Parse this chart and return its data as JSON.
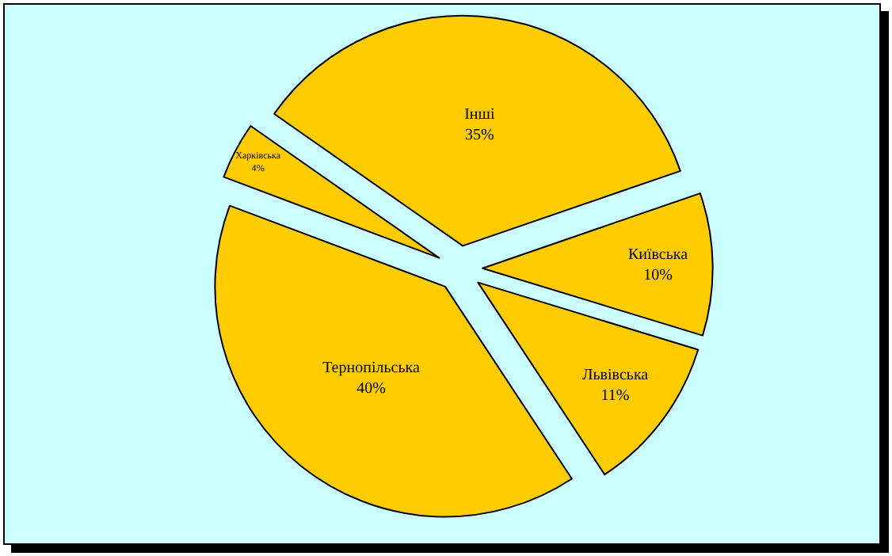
{
  "chart_data": {
    "type": "pie",
    "categories": [
      "Інші",
      "Київська",
      "Львівська",
      "Тернопільська",
      "Харківська"
    ],
    "values": [
      35,
      10,
      11,
      40,
      4
    ],
    "value_labels": [
      "35%",
      "10%",
      "11%",
      "40%",
      "4%"
    ],
    "colors": [
      "#ffcc00",
      "#ffcc00",
      "#ffcc00",
      "#ffcc00",
      "#ffcc00"
    ],
    "legend": false
  }
}
